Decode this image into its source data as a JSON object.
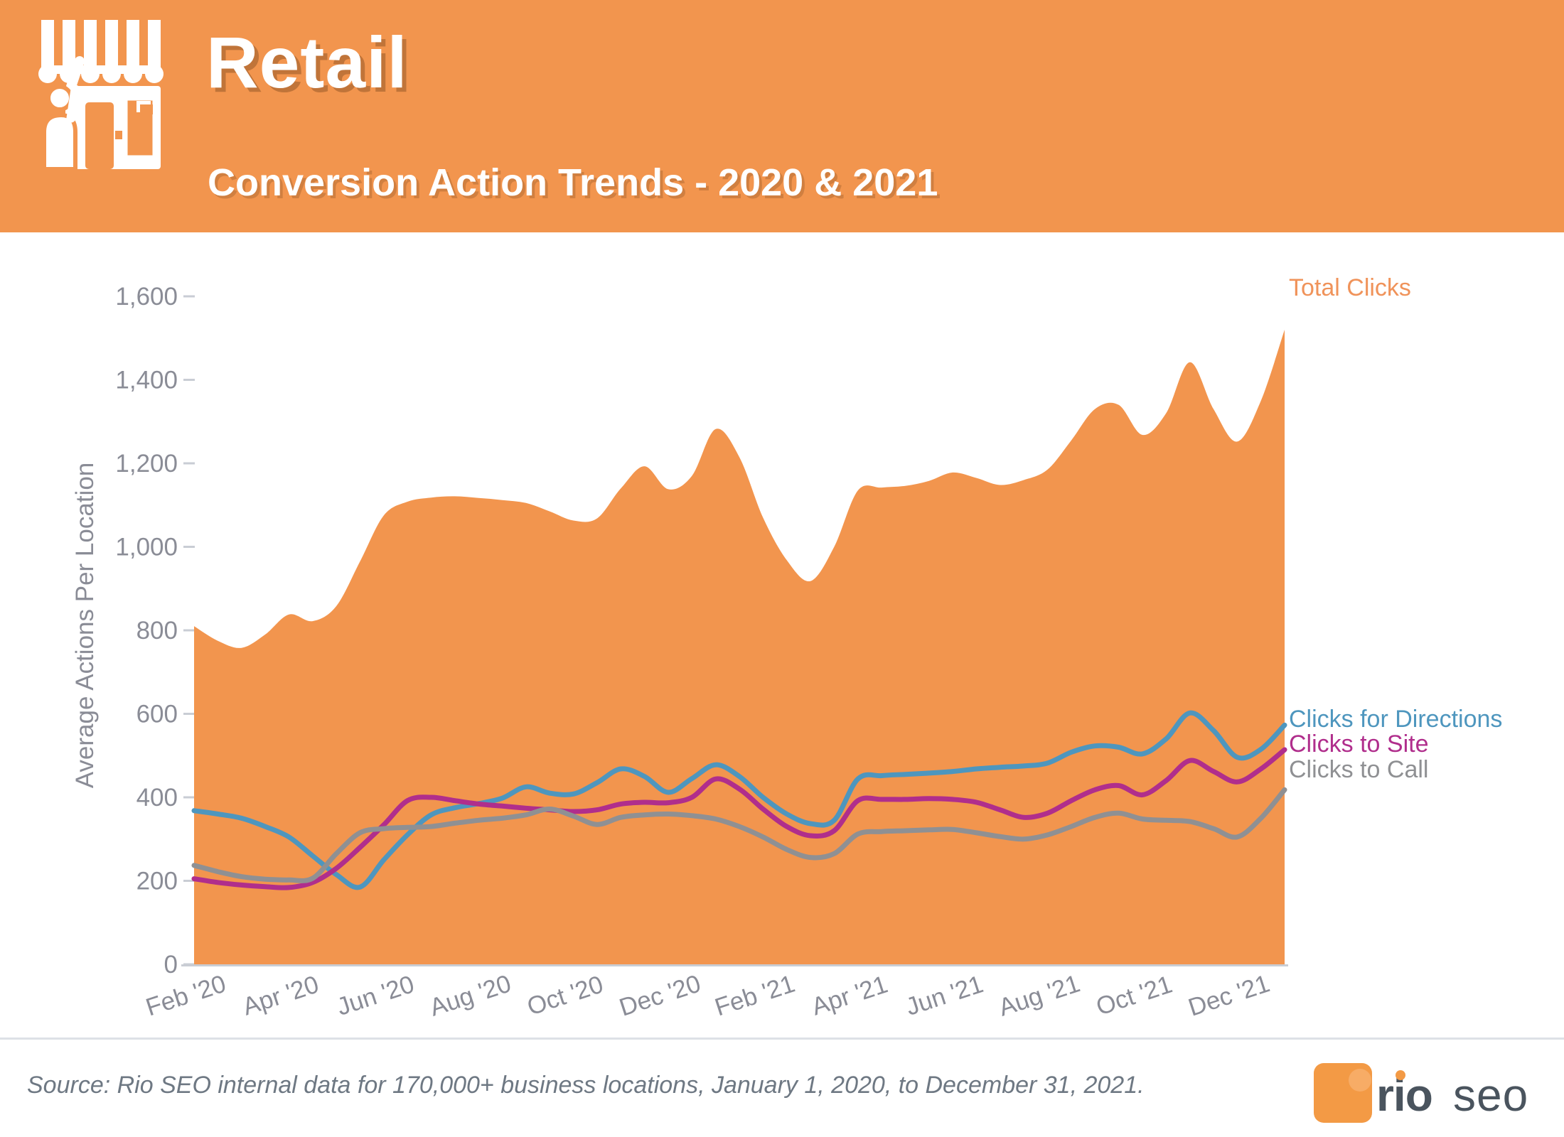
{
  "header": {
    "title": "Retail",
    "subtitle": "Conversion Action Trends - 2020 & 2021",
    "icon": "storefront-icon"
  },
  "chart": {
    "y_axis_title": "Average Actions Per Location",
    "legend": {
      "total": "Total Clicks",
      "directions": "Clicks for Directions",
      "site": "Clicks to Site",
      "call": "Clicks to Call"
    }
  },
  "chart_data": {
    "type": "area",
    "title": "Retail Conversion Action Trends - 2020 & 2021",
    "xlabel": "",
    "ylabel": "Average Actions Per Location",
    "x_unit": "months since Feb 2020, sampled every half month",
    "x_step": 0.5,
    "xlim": [
      0,
      23
    ],
    "ylim": [
      0,
      1600
    ],
    "grid": false,
    "legend_position": "right",
    "y_ticks": [
      0,
      200,
      400,
      600,
      800,
      1000,
      1200,
      1400,
      1600
    ],
    "y_tick_labels": [
      "0",
      "200",
      "400",
      "600",
      "800",
      "1,000",
      "1,200",
      "1,400",
      "1,600"
    ],
    "x_tick_positions": [
      0,
      2,
      4,
      6,
      8,
      10,
      12,
      14,
      16,
      18,
      20,
      22
    ],
    "x_tick_labels": [
      "Feb '20",
      "Apr '20",
      "Jun '20",
      "Aug '20",
      "Oct '20",
      "Dec '20",
      "Feb '21",
      "Apr '21",
      "Jun '21",
      "Aug '21",
      "Oct '21",
      "Dec '21"
    ],
    "series": [
      {
        "name": "Total Clicks",
        "style": "area",
        "color": "#F2954E",
        "values": [
          810,
          775,
          758,
          790,
          838,
          822,
          858,
          965,
          1075,
          1108,
          1118,
          1121,
          1117,
          1112,
          1105,
          1085,
          1063,
          1068,
          1140,
          1193,
          1138,
          1170,
          1282,
          1215,
          1070,
          968,
          918,
          1000,
          1135,
          1142,
          1146,
          1158,
          1178,
          1165,
          1148,
          1160,
          1185,
          1255,
          1330,
          1340,
          1268,
          1320,
          1442,
          1330,
          1252,
          1350,
          1520
        ]
      },
      {
        "name": "Clicks for Directions",
        "style": "line",
        "color": "#4E96BE",
        "values": [
          368,
          360,
          350,
          330,
          305,
          260,
          215,
          185,
          250,
          310,
          358,
          375,
          385,
          398,
          425,
          410,
          408,
          435,
          468,
          450,
          412,
          445,
          478,
          450,
          400,
          360,
          337,
          345,
          444,
          452,
          455,
          458,
          462,
          468,
          472,
          475,
          482,
          508,
          523,
          520,
          504,
          540,
          602,
          560,
          496,
          515,
          573
        ]
      },
      {
        "name": "Clicks to Site",
        "style": "line",
        "color": "#B02E8C",
        "values": [
          205,
          196,
          190,
          186,
          184,
          196,
          230,
          280,
          334,
          392,
          400,
          392,
          384,
          379,
          374,
          370,
          366,
          370,
          384,
          388,
          387,
          400,
          444,
          420,
          372,
          330,
          308,
          320,
          392,
          395,
          395,
          397,
          395,
          388,
          370,
          352,
          362,
          392,
          418,
          428,
          406,
          440,
          488,
          462,
          437,
          468,
          514
        ]
      },
      {
        "name": "Clicks to Call",
        "style": "line",
        "color": "#8F9093",
        "values": [
          237,
          222,
          210,
          204,
          202,
          206,
          265,
          315,
          325,
          328,
          330,
          338,
          345,
          350,
          358,
          372,
          355,
          335,
          352,
          358,
          360,
          356,
          348,
          330,
          305,
          275,
          256,
          265,
          312,
          318,
          320,
          322,
          323,
          315,
          306,
          300,
          310,
          330,
          352,
          362,
          348,
          345,
          342,
          325,
          305,
          350,
          418
        ]
      }
    ]
  },
  "footer": {
    "source": "Source: Rio SEO internal data for 170,000+ business locations, January 1, 2020, to December 31, 2021.",
    "logo_rio": "rio",
    "logo_seo": "seo"
  },
  "colors": {
    "header_bg": "#F2954E",
    "area_orange": "#F2954E",
    "line_blue": "#4E96BE",
    "line_magenta": "#B02E8C",
    "line_gray": "#8F9093",
    "axis_text": "#8A8C96",
    "axis_line": "#C9CDD4",
    "divider": "#DDE1E6",
    "source_text": "#6E7883",
    "logo_slate": "#4A545E",
    "logo_orange": "#F39A45"
  }
}
